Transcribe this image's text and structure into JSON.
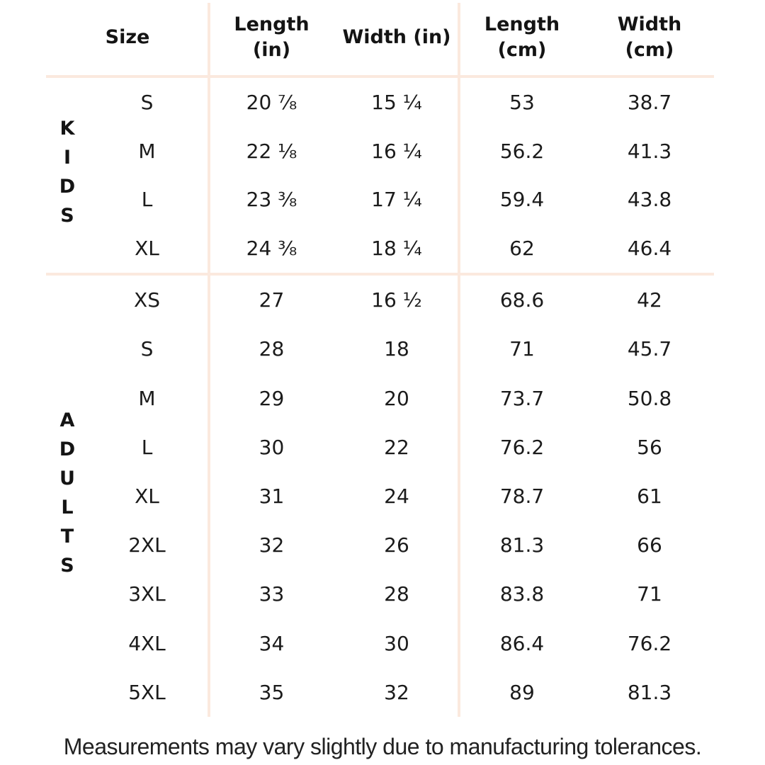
{
  "table": {
    "columns": [
      {
        "key": "size",
        "lines": [
          "Size",
          ""
        ]
      },
      {
        "key": "length_in",
        "lines": [
          "Length",
          "(in)"
        ]
      },
      {
        "key": "width_in",
        "lines": [
          "Width (in)",
          ""
        ]
      },
      {
        "key": "length_cm",
        "lines": [
          "Length",
          "(cm)"
        ]
      },
      {
        "key": "width_cm",
        "lines": [
          "Width",
          "(cm)"
        ]
      }
    ],
    "groups": [
      {
        "label": "KIDS",
        "rows": [
          {
            "size": "S",
            "length_in": "20 ⅞",
            "width_in": "15 ¼",
            "length_cm": "53",
            "width_cm": "38.7"
          },
          {
            "size": "M",
            "length_in": "22 ⅛",
            "width_in": "16 ¼",
            "length_cm": "56.2",
            "width_cm": "41.3"
          },
          {
            "size": "L",
            "length_in": "23 ⅜",
            "width_in": "17 ¼",
            "length_cm": "59.4",
            "width_cm": "43.8"
          },
          {
            "size": "XL",
            "length_in": "24 ⅜",
            "width_in": "18 ¼",
            "length_cm": "62",
            "width_cm": "46.4"
          }
        ]
      },
      {
        "label": "ADULTS",
        "rows": [
          {
            "size": "XS",
            "length_in": "27",
            "width_in": "16 ½",
            "length_cm": "68.6",
            "width_cm": "42"
          },
          {
            "size": "S",
            "length_in": "28",
            "width_in": "18",
            "length_cm": "71",
            "width_cm": "45.7"
          },
          {
            "size": "M",
            "length_in": "29",
            "width_in": "20",
            "length_cm": "73.7",
            "width_cm": "50.8"
          },
          {
            "size": "L",
            "length_in": "30",
            "width_in": "22",
            "length_cm": "76.2",
            "width_cm": "56"
          },
          {
            "size": "XL",
            "length_in": "31",
            "width_in": "24",
            "length_cm": "78.7",
            "width_cm": "61"
          },
          {
            "size": "2XL",
            "length_in": "32",
            "width_in": "26",
            "length_cm": "81.3",
            "width_cm": "66"
          },
          {
            "size": "3XL",
            "length_in": "33",
            "width_in": "28",
            "length_cm": "83.8",
            "width_cm": "71"
          },
          {
            "size": "4XL",
            "length_in": "34",
            "width_in": "30",
            "length_cm": "86.4",
            "width_cm": "76.2"
          },
          {
            "size": "5XL",
            "length_in": "35",
            "width_in": "32",
            "length_cm": "89",
            "width_cm": "81.3"
          }
        ]
      }
    ]
  },
  "footer": {
    "note": "Measurements may vary slightly due to manufacturing tolerances."
  },
  "colors": {
    "divider": "#fbe9de",
    "text": "#161616"
  }
}
